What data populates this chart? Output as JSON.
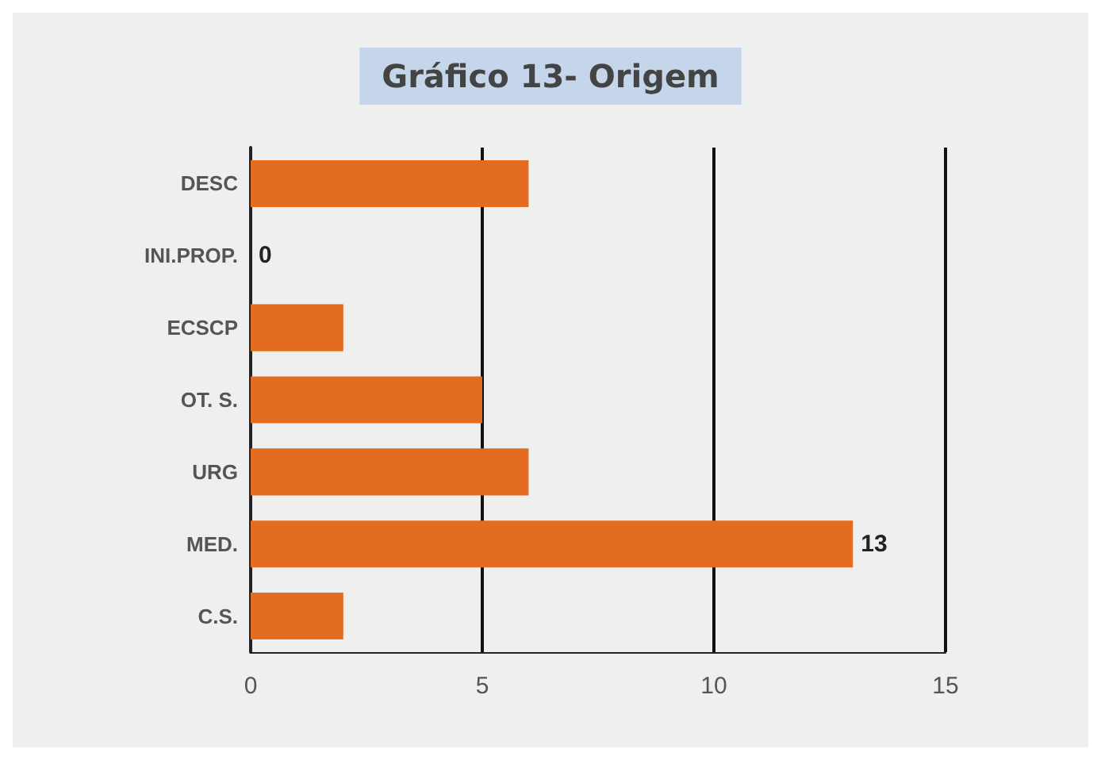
{
  "chart_data": {
    "type": "bar",
    "orientation": "horizontal",
    "title": "Gráfico 13- Origem",
    "categories": [
      "DESC",
      "INI.PROP.",
      "ECSCP",
      "OT. S.",
      "URG",
      "MED.",
      "C.S."
    ],
    "values": [
      6,
      0,
      2,
      5,
      6,
      13,
      2
    ],
    "value_labels": [
      null,
      "0",
      null,
      null,
      null,
      "13",
      null
    ],
    "color": "#e36c21",
    "xlim": [
      0,
      15
    ],
    "xticks": [
      0,
      5,
      10,
      15
    ],
    "grid": "x"
  }
}
